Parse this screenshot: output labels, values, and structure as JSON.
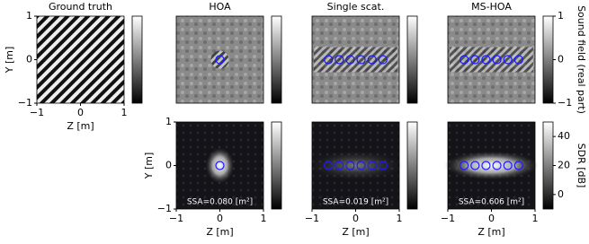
{
  "chart_data": [
    {
      "type": "heatmap",
      "title": "Ground truth",
      "xlabel": "Z [m]",
      "ylabel": "Y [m]",
      "xlim": [
        -1,
        1
      ],
      "ylim": [
        -1,
        1
      ],
      "xticks": [
        {
          "value": -1,
          "label": "−1"
        },
        0,
        1
      ],
      "yticks": [
        1,
        0,
        {
          "value": -1,
          "label": "−1"
        }
      ],
      "colorbar": true
    },
    {
      "type": "heatmap",
      "title": "HOA",
      "xlim": [
        -1,
        1
      ],
      "ylim": [
        -1,
        1
      ],
      "markers_z": [
        0
      ],
      "markers_y": [
        0
      ],
      "colorbar": true
    },
    {
      "type": "heatmap",
      "title": "Single scat.",
      "xlim": [
        -1,
        1
      ],
      "ylim": [
        -1,
        1
      ],
      "markers_z": [
        -0.625,
        -0.375,
        -0.125,
        0.125,
        0.375,
        0.625
      ],
      "markers_y": [
        0,
        0,
        0,
        0,
        0,
        0
      ],
      "colorbar": true
    },
    {
      "type": "heatmap",
      "title": "MS-HOA",
      "xlim": [
        -1,
        1
      ],
      "ylim": [
        -1,
        1
      ],
      "markers_z": [
        -0.625,
        -0.375,
        -0.125,
        0.125,
        0.375,
        0.625
      ],
      "markers_y": [
        0,
        0,
        0,
        0,
        0,
        0
      ],
      "colorbar": {
        "label": "Sound field (real part)",
        "ylim": [
          -1,
          1
        ],
        "yticks": [
          1,
          0,
          {
            "value": -1,
            "label": "−1"
          }
        ]
      }
    },
    {
      "type": "heatmap",
      "xlabel": "Z [m]",
      "ylabel": "Y [m]",
      "xlim": [
        -1,
        1
      ],
      "ylim": [
        -1,
        1
      ],
      "xticks": [
        {
          "value": -1,
          "label": "−1"
        },
        0,
        1
      ],
      "yticks": [
        1,
        0,
        {
          "value": -1,
          "label": "−1"
        }
      ],
      "markers_z": [
        0
      ],
      "markers_y": [
        0
      ],
      "annotation": "SSA=0.080 [m²]",
      "colorbar": true
    },
    {
      "type": "heatmap",
      "xlabel": "Z [m]",
      "xlim": [
        -1,
        1
      ],
      "ylim": [
        -1,
        1
      ],
      "xticks": [
        {
          "value": -1,
          "label": "−1"
        },
        0,
        1
      ],
      "markers_z": [
        -0.625,
        -0.375,
        -0.125,
        0.125,
        0.375,
        0.625
      ],
      "markers_y": [
        0,
        0,
        0,
        0,
        0,
        0
      ],
      "annotation": "SSA=0.019 [m²]",
      "colorbar": true
    },
    {
      "type": "heatmap",
      "xlabel": "Z [m]",
      "xlim": [
        -1,
        1
      ],
      "ylim": [
        -1,
        1
      ],
      "xticks": [
        {
          "value": -1,
          "label": "−1"
        },
        0,
        1
      ],
      "markers_z": [
        -0.625,
        -0.375,
        -0.125,
        0.125,
        0.375,
        0.625
      ],
      "markers_y": [
        0,
        0,
        0,
        0,
        0,
        0
      ],
      "annotation": "SSA=0.606 [m²]",
      "colorbar": {
        "label": "SDR [dB]",
        "ylim": [
          -10,
          50
        ],
        "yticks": [
          40,
          20,
          0
        ]
      }
    }
  ]
}
